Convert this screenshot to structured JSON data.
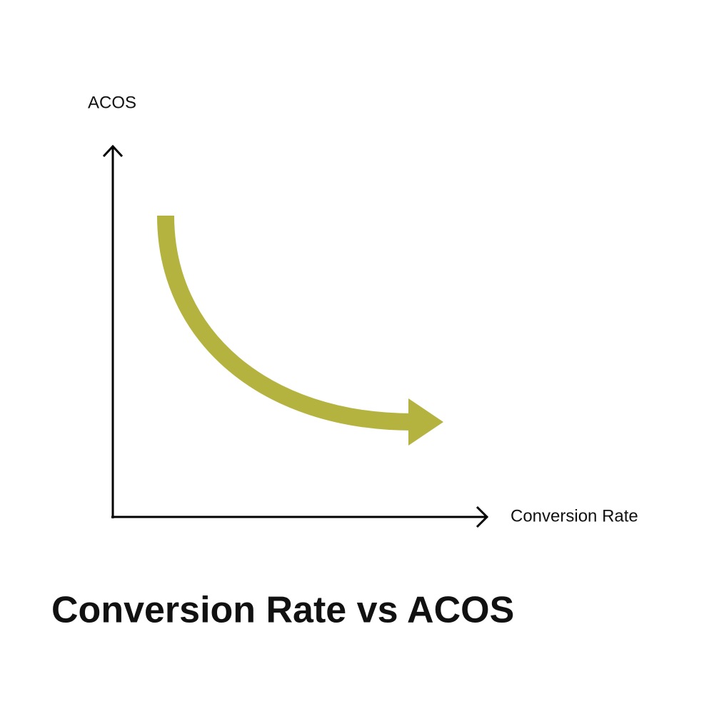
{
  "diagram": {
    "y_axis_label": "ACOS",
    "x_axis_label": "Conversion Rate",
    "title": "Conversion Rate vs ACOS"
  }
}
